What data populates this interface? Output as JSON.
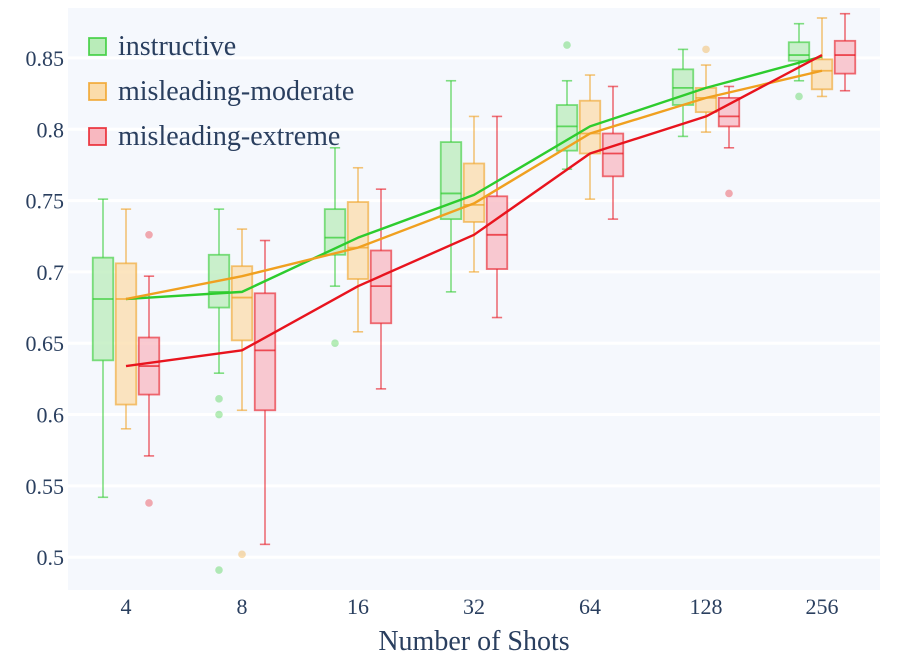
{
  "chart_data": {
    "type": "box",
    "title": "",
    "xlabel": "Number of Shots",
    "ylabel": "",
    "categories": [
      "4",
      "8",
      "16",
      "32",
      "64",
      "128",
      "256"
    ],
    "yticks": [
      0.5,
      0.55,
      0.6,
      0.65,
      0.7,
      0.75,
      0.8,
      0.85
    ],
    "ytick_labels": [
      "0.5",
      "0.55",
      "0.6",
      "0.65",
      "0.7",
      "0.75",
      "0.8",
      "0.85"
    ],
    "ylim": [
      0.477,
      0.885
    ],
    "grid": true,
    "legend_position": "top-left",
    "series": [
      {
        "name": "instructive",
        "color": "#2ecc2e",
        "fill": "#b9ecb9",
        "boxes": [
          {
            "min": 0.542,
            "q1": 0.638,
            "median": 0.681,
            "q3": 0.71,
            "max": 0.751,
            "outliers": []
          },
          {
            "min": 0.629,
            "q1": 0.675,
            "median": 0.686,
            "q3": 0.712,
            "max": 0.744,
            "outliers": [
              0.611,
              0.6,
              0.491
            ]
          },
          {
            "min": 0.69,
            "q1": 0.712,
            "median": 0.724,
            "q3": 0.744,
            "max": 0.787,
            "outliers": [
              0.65
            ]
          },
          {
            "min": 0.686,
            "q1": 0.737,
            "median": 0.755,
            "q3": 0.791,
            "max": 0.834,
            "outliers": []
          },
          {
            "min": 0.772,
            "q1": 0.785,
            "median": 0.802,
            "q3": 0.817,
            "max": 0.834,
            "outliers": [
              0.859
            ]
          },
          {
            "min": 0.795,
            "q1": 0.817,
            "median": 0.829,
            "q3": 0.842,
            "max": 0.856,
            "outliers": []
          },
          {
            "min": 0.834,
            "q1": 0.848,
            "median": 0.852,
            "q3": 0.861,
            "max": 0.874,
            "outliers": [
              0.823
            ]
          }
        ],
        "mean_line": [
          0.681,
          0.686,
          0.724,
          0.754,
          0.802,
          0.829,
          0.851
        ]
      },
      {
        "name": "misleading-moderate",
        "color": "#f0a020",
        "fill": "#fbdcaa",
        "boxes": [
          {
            "min": 0.59,
            "q1": 0.607,
            "median": 0.681,
            "q3": 0.706,
            "max": 0.744,
            "outliers": []
          },
          {
            "min": 0.603,
            "q1": 0.652,
            "median": 0.682,
            "q3": 0.704,
            "max": 0.73,
            "outliers": [
              0.502
            ]
          },
          {
            "min": 0.658,
            "q1": 0.695,
            "median": 0.717,
            "q3": 0.749,
            "max": 0.773,
            "outliers": []
          },
          {
            "min": 0.7,
            "q1": 0.735,
            "median": 0.747,
            "q3": 0.776,
            "max": 0.809,
            "outliers": []
          },
          {
            "min": 0.751,
            "q1": 0.783,
            "median": 0.797,
            "q3": 0.82,
            "max": 0.838,
            "outliers": []
          },
          {
            "min": 0.798,
            "q1": 0.812,
            "median": 0.822,
            "q3": 0.829,
            "max": 0.845,
            "outliers": [
              0.856
            ]
          },
          {
            "min": 0.823,
            "q1": 0.828,
            "median": 0.841,
            "q3": 0.849,
            "max": 0.878,
            "outliers": []
          }
        ],
        "mean_line": [
          0.681,
          0.697,
          0.717,
          0.748,
          0.797,
          0.822,
          0.841
        ]
      },
      {
        "name": "misleading-extreme",
        "color": "#e8141e",
        "fill": "#f8b8c0",
        "boxes": [
          {
            "min": 0.571,
            "q1": 0.614,
            "median": 0.634,
            "q3": 0.654,
            "max": 0.697,
            "outliers": [
              0.726,
              0.538
            ]
          },
          {
            "min": 0.509,
            "q1": 0.603,
            "median": 0.645,
            "q3": 0.685,
            "max": 0.722,
            "outliers": []
          },
          {
            "min": 0.618,
            "q1": 0.664,
            "median": 0.69,
            "q3": 0.715,
            "max": 0.758,
            "outliers": []
          },
          {
            "min": 0.668,
            "q1": 0.702,
            "median": 0.726,
            "q3": 0.753,
            "max": 0.809,
            "outliers": []
          },
          {
            "min": 0.737,
            "q1": 0.767,
            "median": 0.783,
            "q3": 0.797,
            "max": 0.83,
            "outliers": []
          },
          {
            "min": 0.787,
            "q1": 0.802,
            "median": 0.809,
            "q3": 0.822,
            "max": 0.83,
            "outliers": [
              0.755
            ]
          },
          {
            "min": 0.827,
            "q1": 0.839,
            "median": 0.852,
            "q3": 0.862,
            "max": 0.881,
            "outliers": []
          }
        ],
        "mean_line": [
          0.634,
          0.645,
          0.69,
          0.726,
          0.783,
          0.809,
          0.852
        ]
      }
    ]
  }
}
